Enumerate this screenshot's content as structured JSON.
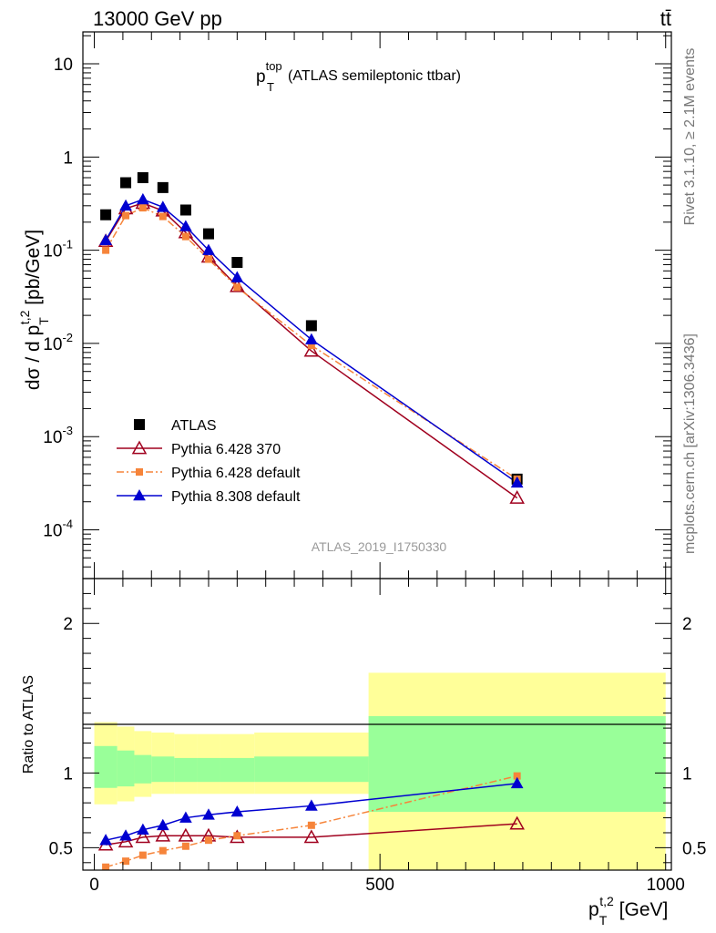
{
  "header": {
    "process": "13000 GeV pp",
    "final_state": "tt̄"
  },
  "side_labels": {
    "rivet": "Rivet 3.1.10, ≥ 2.1M events",
    "mcplots": "mcplots.cern.ch [arXiv:1306.3436]"
  },
  "analysis_id": "ATLAS_2019_I1750330",
  "colors": {
    "atlas": "#000000",
    "p6_370": "#a0001e",
    "p6_default": "#f6843a",
    "p8_default": "#0000d0",
    "band_inner": "#99ff99",
    "band_outer": "#ffff99"
  },
  "chart_data": [
    {
      "type": "line",
      "title_main": "p",
      "title_sup": "top",
      "title_sub": "T",
      "title_rest": " (ATLAS semileptonic ttbar)",
      "ylabel": "dσ / d p_T^{t,2} [pb/GeV]",
      "yscale": "log",
      "ylim": [
        3e-05,
        22
      ],
      "xlim": [
        -20,
        1010
      ],
      "y_tick_labels": [
        "10",
        "1",
        "10^-1",
        "10^-2",
        "10^-3",
        "10^-4"
      ],
      "x": [
        20,
        55,
        85,
        120,
        160,
        200,
        250,
        380,
        740
      ],
      "series": [
        {
          "name": "ATLAS",
          "style": "square",
          "values": [
            0.24,
            0.53,
            0.6,
            0.47,
            0.27,
            0.15,
            0.074,
            0.0155,
            0.00035
          ]
        },
        {
          "name": "Pythia 6.428 370",
          "style": "open-triangle",
          "values": [
            0.125,
            0.28,
            0.32,
            0.265,
            0.155,
            0.085,
            0.041,
            0.0083,
            0.00022
          ]
        },
        {
          "name": "Pythia 6.428 default",
          "style": "small-square-dashdot",
          "values": [
            0.1,
            0.235,
            0.285,
            0.23,
            0.14,
            0.08,
            0.04,
            0.0095,
            0.00035
          ]
        },
        {
          "name": "Pythia 8.308 default",
          "style": "filled-triangle",
          "values": [
            0.128,
            0.3,
            0.35,
            0.29,
            0.18,
            0.1,
            0.051,
            0.011,
            0.00032
          ]
        }
      ]
    },
    {
      "type": "line",
      "ylabel": "Ratio to ATLAS",
      "xlabel": "p_T^{t,2} [GeV]",
      "ylim": [
        0.35,
        2.3
      ],
      "xlim": [
        -20,
        1010
      ],
      "x_tick_labels": [
        "0",
        "500",
        "1000"
      ],
      "y_tick_labels": [
        "0.5",
        "1",
        "2"
      ],
      "bands": [
        {
          "x0": 0,
          "x1": 40,
          "inner": [
            0.9,
            1.18
          ],
          "outer": [
            0.79,
            1.34
          ]
        },
        {
          "x0": 40,
          "x1": 70,
          "inner": [
            0.91,
            1.15
          ],
          "outer": [
            0.81,
            1.31
          ]
        },
        {
          "x0": 70,
          "x1": 100,
          "inner": [
            0.93,
            1.12
          ],
          "outer": [
            0.84,
            1.28
          ]
        },
        {
          "x0": 100,
          "x1": 140,
          "inner": [
            0.94,
            1.11
          ],
          "outer": [
            0.86,
            1.27
          ]
        },
        {
          "x0": 140,
          "x1": 180,
          "inner": [
            0.94,
            1.1
          ],
          "outer": [
            0.86,
            1.26
          ]
        },
        {
          "x0": 180,
          "x1": 220,
          "inner": [
            0.94,
            1.1
          ],
          "outer": [
            0.86,
            1.26
          ]
        },
        {
          "x0": 220,
          "x1": 280,
          "inner": [
            0.94,
            1.1
          ],
          "outer": [
            0.86,
            1.26
          ]
        },
        {
          "x0": 280,
          "x1": 480,
          "inner": [
            0.94,
            1.11
          ],
          "outer": [
            0.86,
            1.27
          ]
        },
        {
          "x0": 480,
          "x1": 1000,
          "inner": [
            0.74,
            1.38
          ],
          "outer": [
            0.3,
            1.67
          ]
        }
      ],
      "x": [
        20,
        55,
        85,
        120,
        160,
        200,
        250,
        380,
        740
      ],
      "series": [
        {
          "name": "Pythia 6.428 370",
          "values": [
            0.52,
            0.54,
            0.57,
            0.58,
            0.58,
            0.58,
            0.57,
            0.57,
            0.66
          ]
        },
        {
          "name": "Pythia 6.428 default",
          "values": [
            0.37,
            0.41,
            0.45,
            0.48,
            0.51,
            0.55,
            0.58,
            0.65,
            0.98
          ]
        },
        {
          "name": "Pythia 8.308 default",
          "values": [
            0.55,
            0.58,
            0.62,
            0.65,
            0.7,
            0.72,
            0.74,
            0.78,
            0.93
          ]
        }
      ]
    }
  ]
}
